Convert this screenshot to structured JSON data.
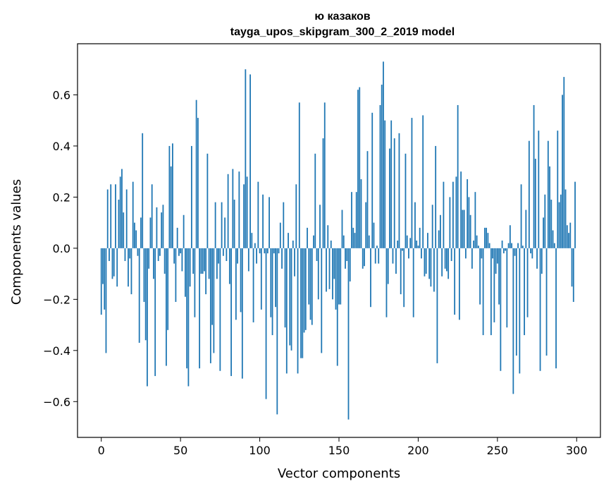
{
  "chart_data": {
    "type": "bar",
    "title": "ю казаков",
    "subtitle": "tayga_upos_skipgram_300_2_2019 model",
    "xlabel": "Vector components",
    "ylabel": "Components values",
    "xlim": [
      -15,
      315
    ],
    "ylim": [
      -0.74,
      0.8
    ],
    "grid": false,
    "bar_color": "#1f77b4",
    "x_ticks": [
      0,
      50,
      100,
      150,
      200,
      250,
      300
    ],
    "y_ticks": [
      -0.6,
      -0.4,
      -0.2,
      0.0,
      0.2,
      0.4,
      0.6
    ],
    "y_tick_labels": [
      "−0.6",
      "−0.4",
      "−0.2",
      "0.0",
      "0.2",
      "0.4",
      "0.6"
    ],
    "values": [
      -0.26,
      -0.14,
      -0.24,
      -0.41,
      0.23,
      -0.05,
      0.25,
      -0.12,
      -0.11,
      0.25,
      -0.15,
      0.19,
      0.28,
      0.31,
      0.14,
      -0.05,
      0.23,
      -0.15,
      -0.04,
      -0.18,
      0.26,
      0.1,
      0.07,
      -0.03,
      -0.37,
      0.12,
      0.45,
      -0.21,
      -0.36,
      -0.54,
      -0.08,
      0.12,
      0.25,
      -0.12,
      -0.5,
      0.16,
      -0.05,
      -0.03,
      0.14,
      0.17,
      -0.1,
      -0.46,
      -0.32,
      0.4,
      0.32,
      0.41,
      -0.06,
      -0.21,
      0.08,
      -0.03,
      -0.02,
      -0.09,
      0.13,
      -0.19,
      -0.47,
      -0.54,
      -0.15,
      0.4,
      -0.1,
      -0.27,
      0.58,
      0.51,
      -0.47,
      -0.1,
      -0.1,
      -0.09,
      -0.18,
      0.37,
      -0.12,
      -0.45,
      -0.3,
      -0.41,
      0.18,
      -0.12,
      -0.06,
      -0.48,
      0.18,
      -0.03,
      0.12,
      -0.05,
      0.29,
      -0.14,
      -0.5,
      0.31,
      0.19,
      -0.28,
      -0.06,
      0.3,
      -0.25,
      -0.51,
      0.25,
      0.7,
      0.28,
      -0.09,
      0.68,
      0.06,
      -0.29,
      0.02,
      -0.06,
      0.26,
      -0.02,
      -0.24,
      0.21,
      -0.02,
      -0.59,
      -0.02,
      0.2,
      -0.27,
      -0.34,
      -0.02,
      -0.23,
      -0.65,
      -0.02,
      0.1,
      -0.08,
      0.18,
      -0.31,
      -0.49,
      0.06,
      -0.38,
      -0.4,
      0.03,
      -0.11,
      0.25,
      -0.49,
      0.57,
      -0.43,
      -0.43,
      -0.33,
      -0.32,
      0.08,
      -0.22,
      -0.28,
      -0.3,
      0.05,
      0.37,
      -0.05,
      -0.2,
      0.17,
      -0.41,
      0.43,
      0.57,
      -0.17,
      0.09,
      -0.16,
      0.03,
      -0.2,
      -0.12,
      -0.24,
      -0.46,
      -0.22,
      -0.22,
      0.15,
      0.05,
      -0.08,
      -0.05,
      -0.67,
      -0.13,
      0.22,
      0.08,
      0.06,
      0.22,
      0.62,
      0.63,
      0.27,
      -0.08,
      -0.07,
      0.18,
      0.38,
      0.05,
      -0.23,
      0.53,
      0.1,
      -0.06,
      0.01,
      -0.06,
      0.56,
      0.64,
      0.73,
      0.5,
      -0.27,
      -0.14,
      0.39,
      0.5,
      -0.06,
      0.43,
      -0.1,
      0.03,
      0.45,
      -0.18,
      -0.01,
      -0.23,
      0.37,
      0.05,
      -0.04,
      0.04,
      0.51,
      -0.27,
      0.18,
      0.03,
      0.01,
      0.08,
      -0.04,
      0.52,
      -0.11,
      -0.1,
      0.06,
      -0.12,
      -0.15,
      0.17,
      -0.17,
      0.4,
      -0.45,
      0.07,
      0.13,
      -0.11,
      0.26,
      -0.08,
      -0.09,
      -0.12,
      0.2,
      -0.05,
      0.26,
      -0.26,
      0.28,
      0.56,
      -0.28,
      0.3,
      0.15,
      0.15,
      -0.04,
      0.27,
      0.2,
      0.13,
      -0.08,
      0.03,
      0.22,
      0.05,
      0.01,
      -0.22,
      -0.04,
      -0.34,
      0.08,
      0.08,
      0.06,
      0.02,
      -0.34,
      -0.04,
      -0.29,
      -0.1,
      -0.06,
      -0.22,
      -0.48,
      0.03,
      -0.02,
      -0.01,
      -0.31,
      0.02,
      0.09,
      0.02,
      -0.57,
      -0.03,
      -0.42,
      0.02,
      -0.49,
      0.25,
      0.01,
      -0.34,
      0.15,
      -0.27,
      0.42,
      -0.02,
      -0.04,
      0.56,
      0.35,
      -0.08,
      0.46,
      -0.48,
      -0.1,
      0.12,
      0.21,
      -0.42,
      0.42,
      0.32,
      0.19,
      0.07,
      0.02,
      -0.47,
      0.46,
      0.18,
      0.21,
      0.6,
      0.67,
      0.23,
      0.09,
      0.06,
      0.1,
      -0.15,
      -0.21,
      0.26
    ]
  }
}
